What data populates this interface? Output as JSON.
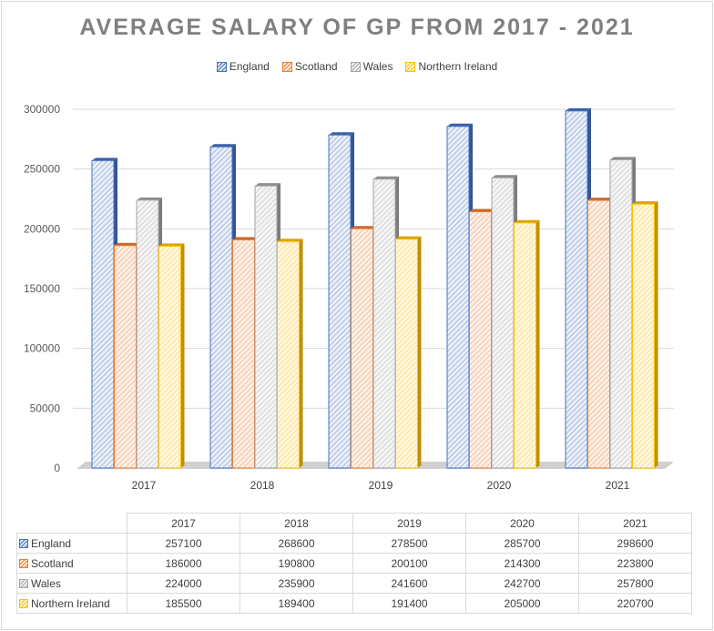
{
  "chart_data": {
    "type": "bar",
    "title": "AVERAGE SALARY OF GP FROM 2017 - 2021",
    "categories": [
      "2017",
      "2018",
      "2019",
      "2020",
      "2021"
    ],
    "series": [
      {
        "name": "England",
        "color": "#4472c4",
        "values": [
          257100,
          268600,
          278500,
          285700,
          298600
        ]
      },
      {
        "name": "Scotland",
        "color": "#ed7d31",
        "values": [
          186000,
          190800,
          200100,
          214300,
          223800
        ]
      },
      {
        "name": "Wales",
        "color": "#a5a5a5",
        "values": [
          224000,
          235900,
          241600,
          242700,
          257800
        ]
      },
      {
        "name": "Northern Ireland",
        "color": "#ffc000",
        "values": [
          185500,
          189400,
          191400,
          205000,
          220700
        ]
      }
    ],
    "ylim": [
      0,
      300000
    ],
    "yticks": [
      "0",
      "50000",
      "100000",
      "150000",
      "200000",
      "250000",
      "300000"
    ],
    "legend": "top",
    "grid": true,
    "data_table": true
  }
}
